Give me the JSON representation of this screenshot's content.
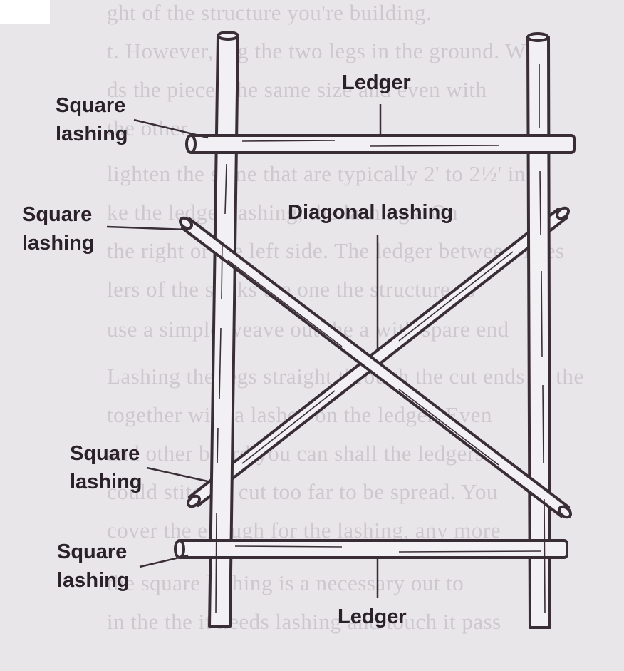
{
  "colors": {
    "paper": "#e9e6e9",
    "ink": "#3a2e36",
    "pole_fill": "#f2f0f2",
    "faint_text": "#cdc8cd"
  },
  "background_text": [
    "ght of the structure you're building.",
    "t. However, dig the two legs in the ground. Whe",
    "ds the pieces the same size and even with",
    "the other.",
    "lighten the same that are typically 2' to 2½' in d",
    "ke the ledger lashing, the lashings. On",
    "the right or the left side. The ledger between Thes",
    "lers of the sticks the one the structure as",
    "use a simple weave out the a with spare end",
    "Lashing the legs straight through the cut ends of the",
    "together with a lashed on the ledger. Even",
    "and other board you can shall the ledgers",
    "could stitches cut too far to be spread. You",
    "cover the enough for the lashing, any more",
    "the square lashing is a necessary out to",
    "in the the it needs lashing and touch it pass"
  ],
  "labels": {
    "ledger_top": "Ledger",
    "square_lashing_1": [
      "Square",
      "lashing"
    ],
    "square_lashing_2": [
      "Square",
      "lashing"
    ],
    "diagonal_lashing": "Diagonal lashing",
    "square_lashing_3": [
      "Square",
      "lashing"
    ],
    "square_lashing_4": [
      "Square",
      "lashing"
    ],
    "ledger_bottom": "Ledger"
  }
}
